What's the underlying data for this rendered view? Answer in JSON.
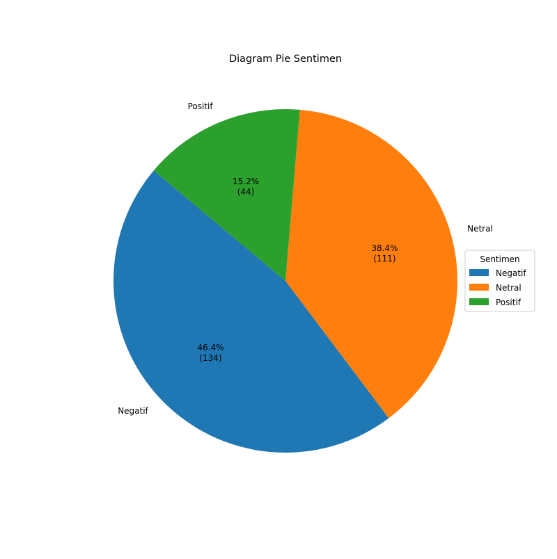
{
  "chart_data": {
    "type": "pie",
    "title": "Diagram Pie Sentimen",
    "categories": [
      "Negatif",
      "Netral",
      "Positif"
    ],
    "values": [
      134,
      111,
      44
    ],
    "percent_labels": [
      "46.4%",
      "38.4%",
      "15.2%"
    ],
    "count_labels": [
      "(134)",
      "(111)",
      "(44)"
    ],
    "colors": [
      "#1f77b4",
      "#ff7f0e",
      "#2ca02c"
    ],
    "start_angle_deg": 140,
    "direction": "counterclockwise",
    "legend": {
      "title": "Sentimen",
      "placement": "center-right",
      "entries": [
        "Negatif",
        "Netral",
        "Positif"
      ]
    }
  }
}
